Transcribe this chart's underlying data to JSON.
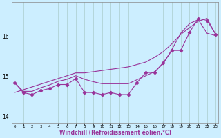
{
  "xlabel": "Windchill (Refroidissement éolien,°C)",
  "x_values": [
    0,
    1,
    2,
    3,
    4,
    5,
    6,
    7,
    8,
    9,
    10,
    11,
    12,
    13,
    14,
    15,
    16,
    17,
    18,
    19,
    20,
    21,
    22,
    23
  ],
  "line_zigzag": [
    14.85,
    14.6,
    14.55,
    14.65,
    14.7,
    14.8,
    14.8,
    14.95,
    14.6,
    14.6,
    14.55,
    14.6,
    14.55,
    14.55,
    14.85,
    15.1,
    15.1,
    15.35,
    15.65,
    15.65,
    16.1,
    16.45,
    16.4,
    16.05
  ],
  "line_trend1": [
    14.6,
    14.67,
    14.74,
    14.81,
    14.88,
    14.95,
    15.02,
    15.09,
    15.09,
    15.12,
    15.15,
    15.18,
    15.21,
    15.24,
    15.3,
    15.36,
    15.48,
    15.62,
    15.82,
    16.05,
    16.22,
    16.38,
    16.45,
    16.05
  ],
  "line_trend2": [
    14.85,
    14.63,
    14.63,
    14.72,
    14.79,
    14.88,
    14.93,
    15.02,
    14.93,
    14.87,
    14.82,
    14.82,
    14.82,
    14.82,
    14.92,
    15.02,
    15.12,
    15.32,
    15.68,
    16.08,
    16.32,
    16.42,
    16.08,
    16.02
  ],
  "bg_color": "#cceeff",
  "line_color": "#993399",
  "grid_color": "#aacccc",
  "ylim": [
    13.85,
    16.85
  ],
  "yticks": [
    14,
    15,
    16
  ],
  "xlim": [
    -0.3,
    23.3
  ]
}
